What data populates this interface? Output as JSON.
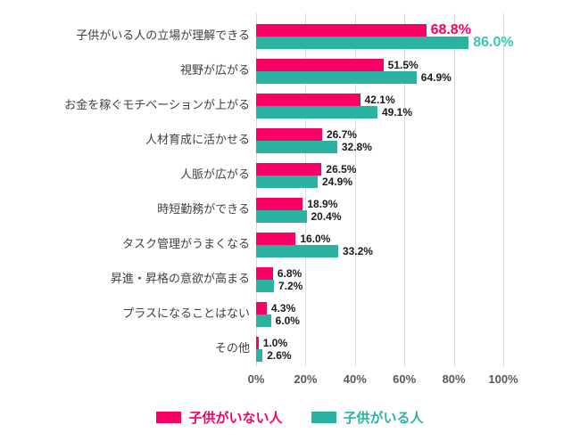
{
  "colors": {
    "series_no_children": "#fa0066",
    "series_with_children": "#2bb3a2",
    "highlight_value_no_children": "#fa0066",
    "highlight_value_with_children": "#3ec5b5",
    "value_text": "#1a1a1a",
    "category_text": "#404040",
    "axis_text": "#595959",
    "gridline": "#d9d9d9",
    "background": "#ffffff"
  },
  "chart_data": {
    "type": "bar",
    "orientation": "horizontal",
    "title": "",
    "categories": [
      "子供がいる人の立場が理解できる",
      "視野が広がる",
      "お金を稼ぐモチベーションが上がる",
      "人材育成に活かせる",
      "人脈が広がる",
      "時短勤務ができる",
      "タスク管理がうまくなる",
      "昇進・昇格の意欲が高まる",
      "プラスになることはない",
      "その他"
    ],
    "series": [
      {
        "name": "子供がいない人",
        "values": [
          68.8,
          51.5,
          42.1,
          26.7,
          26.5,
          18.9,
          16.0,
          6.8,
          4.3,
          1.0
        ]
      },
      {
        "name": "子供がいる人",
        "values": [
          86.0,
          64.9,
          49.1,
          32.8,
          24.9,
          20.4,
          33.2,
          7.2,
          6.0,
          2.6
        ]
      }
    ],
    "value_suffix": "%",
    "value_decimals": 1,
    "xlim": [
      0,
      100
    ],
    "x_tick_values": [
      0,
      20,
      40,
      60,
      80,
      100
    ],
    "x_tick_labels": [
      "0%",
      "20%",
      "40%",
      "60%",
      "80%",
      "100%"
    ],
    "grid": true,
    "legend_position": "bottom",
    "highlight_row": 0
  }
}
